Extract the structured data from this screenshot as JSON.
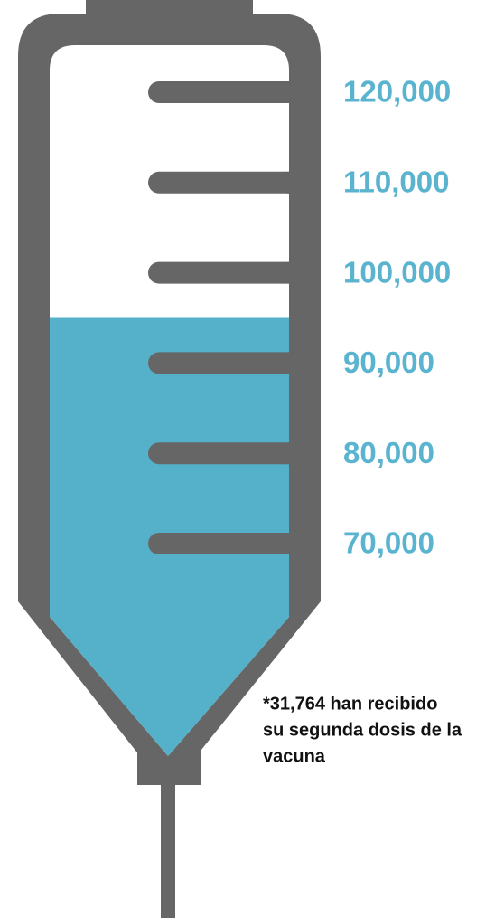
{
  "chart_data": {
    "type": "syringe",
    "value": 95000,
    "color": "#55b1c9",
    "ylim": [
      70000,
      120000
    ],
    "yticks": [
      {
        "value": 120000,
        "label": "120,000"
      },
      {
        "value": 110000,
        "label": "110,000"
      },
      {
        "value": 100000,
        "label": "100,000"
      },
      {
        "value": 90000,
        "label": "90,000"
      },
      {
        "value": 80000,
        "label": "80,000"
      },
      {
        "value": 70000,
        "label": "70,000"
      }
    ],
    "annotation": [
      "*31,764 han recibido",
      "su segunda dosis de la",
      "vacuna"
    ]
  }
}
